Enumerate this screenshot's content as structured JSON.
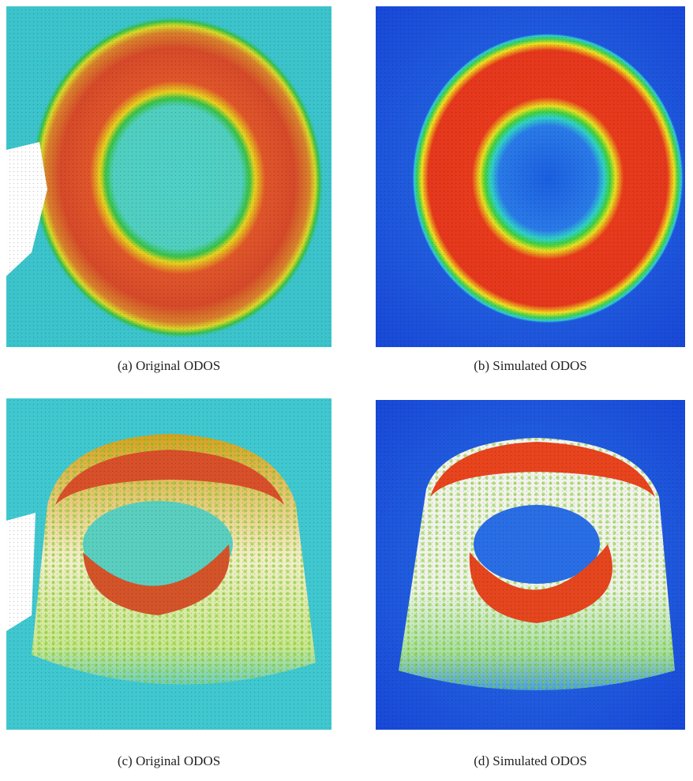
{
  "figure": {
    "panels": [
      {
        "caption": "(a) Original ODOS"
      },
      {
        "caption": "(b) Simulated ODOS"
      },
      {
        "caption": "(c) Original ODOS"
      },
      {
        "caption": "(d) Simulated ODOS"
      }
    ]
  }
}
